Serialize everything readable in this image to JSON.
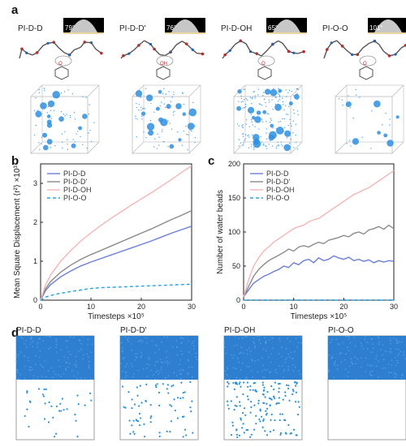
{
  "panels": {
    "a": "a",
    "b": "b",
    "c": "c",
    "d": "d"
  },
  "panel_a": {
    "items": [
      {
        "label": "PI-D-D",
        "angle": "79°"
      },
      {
        "label": "PI-D-D'",
        "angle": "76°"
      },
      {
        "label": "PI-D-OH",
        "angle": "65°"
      },
      {
        "label": "PI-O-O",
        "angle": "101°"
      }
    ],
    "molecule_atom_labels": [
      "O",
      "OH",
      "O",
      "O"
    ]
  },
  "chart_b": {
    "type": "line",
    "title": "",
    "xlabel": "Timesteps ×10⁵",
    "ylabel": "Mean Square Displacement ⟨r²⟩ ×10³",
    "xlim": [
      0,
      30
    ],
    "ylim": [
      0,
      3.5
    ],
    "xticks": [
      "0",
      "10",
      "20",
      "30"
    ],
    "yticks": [
      "0",
      "1",
      "2",
      "3"
    ],
    "x": [
      0,
      1,
      2,
      4,
      6,
      8,
      10,
      12,
      14,
      16,
      18,
      20,
      22,
      24,
      26,
      28,
      30
    ],
    "series": [
      {
        "name": "PI-D-D",
        "color": "#6b7fd7",
        "style": "solid",
        "values": [
          0,
          0.25,
          0.4,
          0.6,
          0.75,
          0.88,
          0.98,
          1.07,
          1.16,
          1.25,
          1.34,
          1.43,
          1.52,
          1.62,
          1.72,
          1.81,
          1.9
        ]
      },
      {
        "name": "PI-D-D'",
        "color": "#8a8a8a",
        "style": "solid",
        "values": [
          0,
          0.3,
          0.48,
          0.72,
          0.9,
          1.05,
          1.17,
          1.28,
          1.39,
          1.5,
          1.61,
          1.72,
          1.83,
          1.95,
          2.07,
          2.18,
          2.3
        ]
      },
      {
        "name": "PI-D-OH",
        "color": "#f4b6b6",
        "style": "solid",
        "values": [
          0,
          0.4,
          0.65,
          1.0,
          1.28,
          1.52,
          1.73,
          1.92,
          2.1,
          2.27,
          2.44,
          2.6,
          2.76,
          2.93,
          3.1,
          3.28,
          3.45
        ]
      },
      {
        "name": "PI-O-O",
        "color": "#29a3e0",
        "style": "dashed",
        "values": [
          0,
          0.08,
          0.12,
          0.18,
          0.22,
          0.26,
          0.3,
          0.32,
          0.33,
          0.34,
          0.35,
          0.36,
          0.37,
          0.38,
          0.39,
          0.4,
          0.41
        ]
      }
    ],
    "legend": "top-left"
  },
  "chart_c": {
    "type": "line",
    "title": "",
    "xlabel": "Timesteps ×10⁵",
    "ylabel": "Number of water beads",
    "xlim": [
      0,
      30
    ],
    "ylim": [
      0,
      200
    ],
    "xticks": [
      "0",
      "10",
      "20",
      "30"
    ],
    "yticks": [
      "0",
      "50",
      "100",
      "150",
      "200"
    ],
    "x": [
      0,
      1,
      2,
      3,
      4,
      5,
      6,
      7,
      8,
      9,
      10,
      11,
      12,
      13,
      14,
      15,
      16,
      17,
      18,
      19,
      20,
      21,
      22,
      23,
      24,
      25,
      26,
      27,
      28,
      29,
      30
    ],
    "series": [
      {
        "name": "PI-D-D",
        "color": "#6b7fd7",
        "style": "solid",
        "values": [
          5,
          15,
          25,
          30,
          35,
          38,
          42,
          45,
          50,
          48,
          55,
          52,
          58,
          60,
          55,
          62,
          58,
          60,
          65,
          62,
          60,
          63,
          58,
          60,
          57,
          59,
          55,
          58,
          56,
          58,
          57
        ]
      },
      {
        "name": "PI-D-D'",
        "color": "#8a8a8a",
        "style": "solid",
        "values": [
          5,
          20,
          35,
          45,
          52,
          58,
          62,
          66,
          70,
          75,
          72,
          78,
          80,
          78,
          82,
          85,
          83,
          88,
          90,
          92,
          95,
          93,
          98,
          100,
          97,
          103,
          105,
          108,
          104,
          110,
          105
        ]
      },
      {
        "name": "PI-D-OH",
        "color": "#f4b6b6",
        "style": "solid",
        "values": [
          5,
          30,
          50,
          62,
          72,
          78,
          85,
          90,
          95,
          100,
          105,
          108,
          110,
          115,
          118,
          120,
          125,
          130,
          135,
          140,
          145,
          150,
          155,
          158,
          162,
          165,
          170,
          175,
          180,
          185,
          190
        ]
      },
      {
        "name": "PI-O-O",
        "color": "#29a3e0",
        "style": "dashed",
        "values": [
          0,
          0,
          0,
          0,
          0,
          0,
          0,
          0,
          0,
          0,
          0,
          0,
          0,
          0,
          0,
          0,
          0,
          0,
          0,
          0,
          0,
          0,
          0,
          0,
          0,
          0,
          0,
          0,
          0,
          0,
          0
        ]
      }
    ],
    "legend": "top-left"
  },
  "panel_d": {
    "items": [
      {
        "label": "PI-D-D",
        "bead_count": 35
      },
      {
        "label": "PI-D-D'",
        "bead_count": 70
      },
      {
        "label": "PI-D-OH",
        "bead_count": 150
      },
      {
        "label": "PI-O-O",
        "bead_count": 0
      }
    ]
  },
  "colors": {
    "water": "#2f7fd0",
    "bead": "#2a8fd8"
  }
}
